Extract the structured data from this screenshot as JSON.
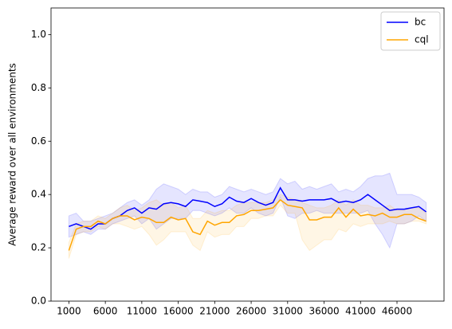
{
  "chart_data": {
    "type": "line",
    "y_label": "Average reward over all environments",
    "x": [
      1000,
      2000,
      3000,
      4000,
      5000,
      6000,
      7000,
      8000,
      9000,
      10000,
      11000,
      12000,
      13000,
      14000,
      15000,
      16000,
      17000,
      18000,
      19000,
      20000,
      21000,
      22000,
      23000,
      24000,
      25000,
      26000,
      27000,
      28000,
      29000,
      30000,
      31000,
      32000,
      33000,
      34000,
      35000,
      36000,
      37000,
      38000,
      39000,
      40000,
      41000,
      42000,
      43000,
      44000,
      45000,
      46000,
      47000,
      48000,
      49000,
      50000
    ],
    "series": [
      {
        "name": "bc",
        "color": "#0000ff",
        "values": [
          0.28,
          0.29,
          0.28,
          0.27,
          0.29,
          0.29,
          0.31,
          0.32,
          0.34,
          0.35,
          0.33,
          0.35,
          0.345,
          0.365,
          0.37,
          0.365,
          0.355,
          0.38,
          0.375,
          0.37,
          0.355,
          0.365,
          0.39,
          0.375,
          0.37,
          0.385,
          0.37,
          0.36,
          0.37,
          0.425,
          0.38,
          0.38,
          0.375,
          0.38,
          0.38,
          0.38,
          0.385,
          0.37,
          0.375,
          0.37,
          0.38,
          0.4,
          0.38,
          0.36,
          0.34,
          0.345,
          0.345,
          0.35,
          0.355,
          0.335
        ],
        "upper": [
          0.32,
          0.33,
          0.3,
          0.3,
          0.31,
          0.32,
          0.33,
          0.35,
          0.37,
          0.38,
          0.36,
          0.38,
          0.42,
          0.44,
          0.43,
          0.42,
          0.4,
          0.42,
          0.41,
          0.41,
          0.39,
          0.4,
          0.43,
          0.42,
          0.41,
          0.42,
          0.41,
          0.4,
          0.41,
          0.46,
          0.44,
          0.45,
          0.42,
          0.43,
          0.42,
          0.43,
          0.44,
          0.41,
          0.42,
          0.41,
          0.43,
          0.46,
          0.47,
          0.47,
          0.48,
          0.4,
          0.4,
          0.4,
          0.39,
          0.37
        ],
        "lower": [
          0.24,
          0.25,
          0.26,
          0.25,
          0.27,
          0.27,
          0.29,
          0.3,
          0.31,
          0.32,
          0.29,
          0.31,
          0.27,
          0.29,
          0.31,
          0.31,
          0.31,
          0.34,
          0.34,
          0.33,
          0.32,
          0.33,
          0.35,
          0.33,
          0.33,
          0.35,
          0.33,
          0.32,
          0.33,
          0.39,
          0.32,
          0.31,
          0.33,
          0.33,
          0.34,
          0.33,
          0.33,
          0.33,
          0.33,
          0.33,
          0.33,
          0.34,
          0.29,
          0.25,
          0.2,
          0.29,
          0.29,
          0.3,
          0.32,
          0.3
        ]
      },
      {
        "name": "cql",
        "color": "#ffa500",
        "values": [
          0.19,
          0.27,
          0.28,
          0.28,
          0.3,
          0.29,
          0.31,
          0.32,
          0.32,
          0.305,
          0.315,
          0.31,
          0.295,
          0.295,
          0.315,
          0.305,
          0.31,
          0.26,
          0.25,
          0.3,
          0.285,
          0.295,
          0.295,
          0.32,
          0.325,
          0.34,
          0.34,
          0.345,
          0.35,
          0.38,
          0.36,
          0.355,
          0.35,
          0.305,
          0.305,
          0.315,
          0.315,
          0.35,
          0.315,
          0.345,
          0.32,
          0.325,
          0.32,
          0.33,
          0.315,
          0.315,
          0.325,
          0.325,
          0.31,
          0.3
        ],
        "upper": [
          0.22,
          0.29,
          0.3,
          0.3,
          0.32,
          0.31,
          0.33,
          0.35,
          0.36,
          0.34,
          0.35,
          0.37,
          0.38,
          0.36,
          0.37,
          0.35,
          0.36,
          0.31,
          0.31,
          0.34,
          0.33,
          0.34,
          0.34,
          0.36,
          0.37,
          0.37,
          0.37,
          0.37,
          0.38,
          0.4,
          0.39,
          0.38,
          0.37,
          0.36,
          0.35,
          0.35,
          0.36,
          0.38,
          0.36,
          0.38,
          0.36,
          0.36,
          0.35,
          0.35,
          0.36,
          0.34,
          0.34,
          0.35,
          0.35,
          0.33
        ],
        "lower": [
          0.16,
          0.25,
          0.26,
          0.26,
          0.28,
          0.27,
          0.29,
          0.29,
          0.28,
          0.27,
          0.28,
          0.25,
          0.21,
          0.23,
          0.26,
          0.26,
          0.26,
          0.21,
          0.19,
          0.26,
          0.24,
          0.25,
          0.25,
          0.28,
          0.28,
          0.31,
          0.31,
          0.32,
          0.32,
          0.36,
          0.33,
          0.33,
          0.23,
          0.19,
          0.21,
          0.23,
          0.23,
          0.27,
          0.26,
          0.29,
          0.28,
          0.29,
          0.29,
          0.29,
          0.3,
          0.29,
          0.29,
          0.3,
          0.3,
          0.29
        ]
      }
    ],
    "xlim": [
      -1450,
      52450
    ],
    "xticks": [
      1000,
      6000,
      11000,
      16000,
      21000,
      26000,
      31000,
      36000,
      41000,
      46000
    ],
    "ylim": [
      0,
      1.1
    ],
    "yticks": [
      {
        "value": 0,
        "label": "0.0"
      },
      {
        "value": 0.2,
        "label": "0.2"
      },
      {
        "value": 0.4,
        "label": "0.4"
      },
      {
        "value": 0.6,
        "label": "0.6"
      },
      {
        "value": 0.8,
        "label": "0.8"
      },
      {
        "value": 1.0,
        "label": "1.0"
      }
    ],
    "grid": false,
    "legend": "upper right"
  }
}
